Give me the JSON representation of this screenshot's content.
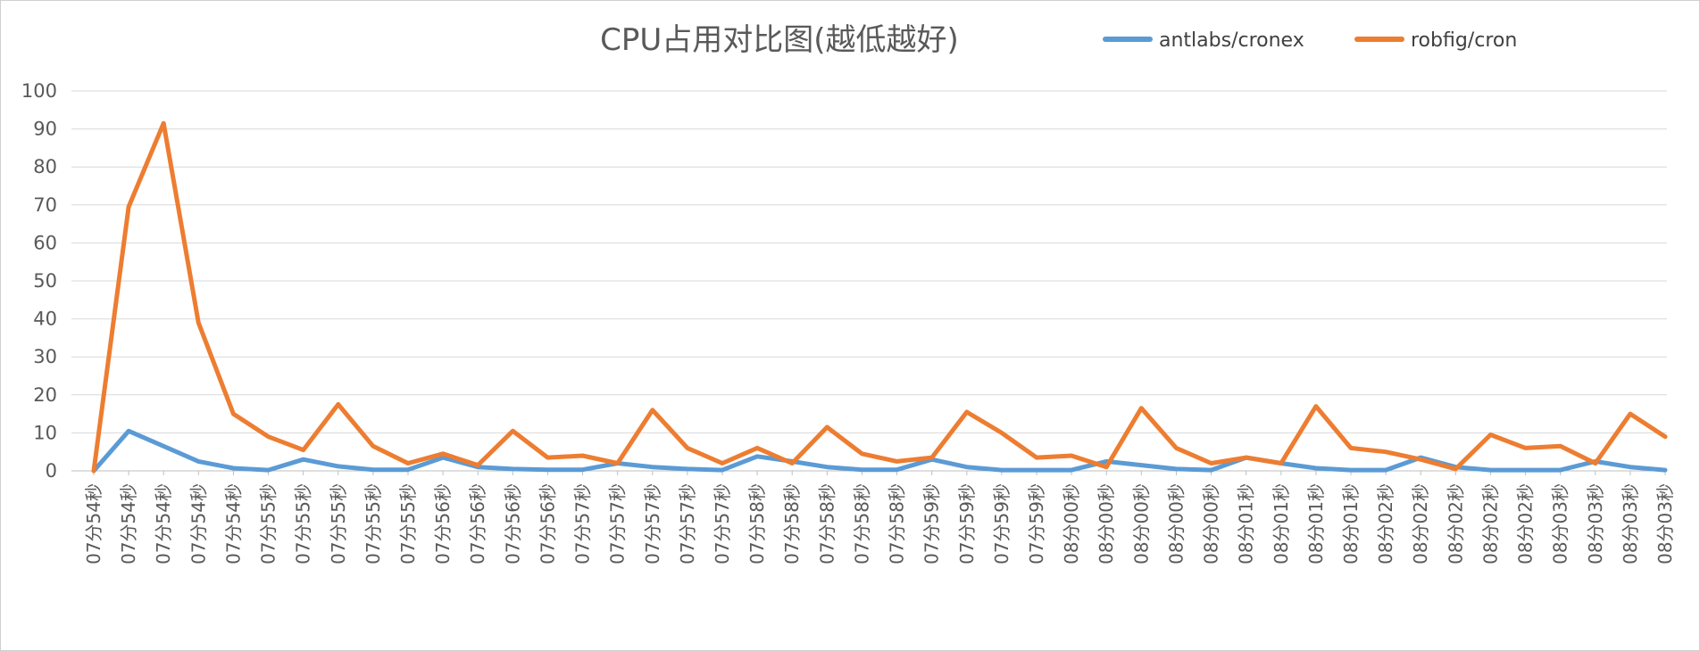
{
  "chart_data": {
    "type": "line",
    "title": "CPU占用对比图(越低越好)",
    "xlabel": "",
    "ylabel": "",
    "ylim": [
      0,
      100
    ],
    "yticks": [
      0,
      10,
      20,
      30,
      40,
      50,
      60,
      70,
      80,
      90,
      100
    ],
    "grid": true,
    "legend_position": "top-right",
    "categories": [
      "07分54秒",
      "07分54秒",
      "07分54秒",
      "07分54秒",
      "07分54秒",
      "07分55秒",
      "07分55秒",
      "07分55秒",
      "07分55秒",
      "07分55秒",
      "07分56秒",
      "07分56秒",
      "07分56秒",
      "07分56秒",
      "07分57秒",
      "07分57秒",
      "07分57秒",
      "07分57秒",
      "07分57秒",
      "07分58秒",
      "07分58秒",
      "07分58秒",
      "07分58秒",
      "07分58秒",
      "07分59秒",
      "07分59秒",
      "07分59秒",
      "07分59秒",
      "08分00秒",
      "08分00秒",
      "08分00秒",
      "08分00秒",
      "08分00秒",
      "08分01秒",
      "08分01秒",
      "08分01秒",
      "08分01秒",
      "08分02秒",
      "08分02秒",
      "08分02秒",
      "08分02秒",
      "08分02秒",
      "08分03秒",
      "08分03秒",
      "08分03秒",
      "08分03秒"
    ],
    "series": [
      {
        "name": "antlabs/cronex",
        "color": "#5B9BD5",
        "values": [
          0,
          10.5,
          6.5,
          2.5,
          0.7,
          0.2,
          3,
          1.2,
          0.3,
          0.3,
          3.5,
          1,
          0.5,
          0.3,
          0.3,
          2,
          1,
          0.5,
          0.2,
          3.8,
          2.5,
          1,
          0.3,
          0.3,
          3,
          1,
          0.2,
          0.2,
          0.2,
          2.5,
          1.5,
          0.5,
          0.2,
          3.5,
          2,
          0.7,
          0.2,
          0.2,
          3.5,
          1,
          0.2,
          0.2,
          0.2,
          2.5,
          1,
          0.2
        ]
      },
      {
        "name": "robfig/cron",
        "color": "#ED7D31",
        "values": [
          0,
          69.5,
          91.5,
          39,
          15,
          9,
          5.5,
          17.5,
          6.5,
          2,
          4.5,
          1.5,
          10.5,
          3.5,
          4,
          2,
          16,
          6,
          2,
          6,
          2,
          11.5,
          4.5,
          2.5,
          3.5,
          15.5,
          10,
          3.5,
          4,
          1,
          16.5,
          6,
          2,
          3.5,
          2,
          17,
          6,
          5,
          3,
          0.5,
          9.5,
          6,
          6.5,
          2,
          15,
          9
        ]
      }
    ]
  }
}
